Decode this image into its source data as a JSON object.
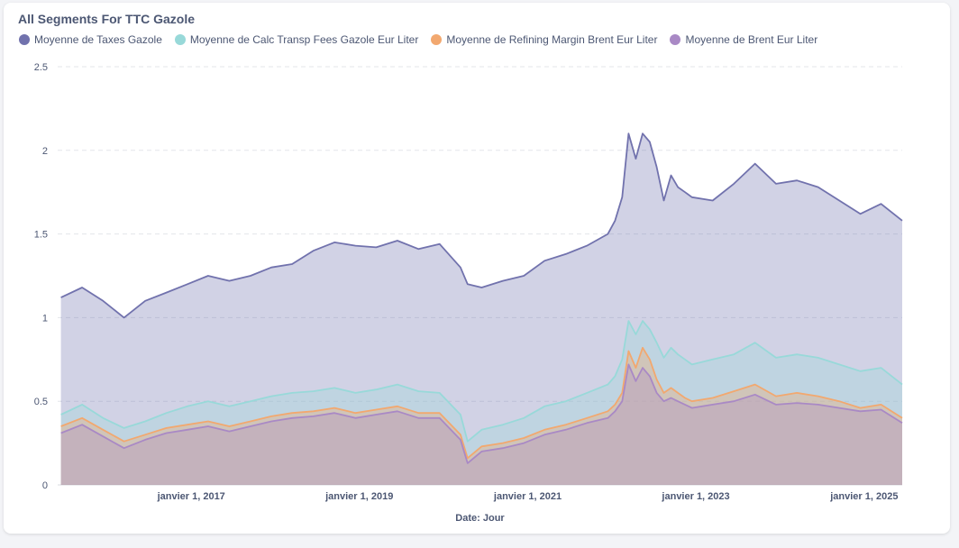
{
  "chart_data": {
    "type": "area",
    "title": "All Segments For TTC Gazole",
    "xlabel": "Date: Jour",
    "ylabel": "",
    "ylim": [
      0,
      2.5
    ],
    "y_ticks": [
      "0",
      "0.5",
      "1",
      "1.5",
      "2",
      "2.5"
    ],
    "x_range": [
      "2015-06-01",
      "2025-06-15"
    ],
    "x_ticks": [
      {
        "label": "janvier 1, 2017",
        "date": "2017-01-01"
      },
      {
        "label": "janvier 1, 2019",
        "date": "2019-01-01"
      },
      {
        "label": "janvier 1, 2021",
        "date": "2021-01-01"
      },
      {
        "label": "janvier 1, 2023",
        "date": "2023-01-01"
      },
      {
        "label": "janvier 1, 2025",
        "date": "2025-01-01"
      }
    ],
    "grid": "horizontal-dashed",
    "legend_position": "top-left",
    "stacked": false,
    "x": [
      "2015-06",
      "2015-09",
      "2015-12",
      "2016-03",
      "2016-06",
      "2016-09",
      "2016-12",
      "2017-03",
      "2017-06",
      "2017-09",
      "2017-12",
      "2018-03",
      "2018-06",
      "2018-09",
      "2018-12",
      "2019-03",
      "2019-06",
      "2019-09",
      "2019-12",
      "2020-03",
      "2020-04",
      "2020-06",
      "2020-09",
      "2020-12",
      "2021-03",
      "2021-06",
      "2021-09",
      "2021-12",
      "2022-01",
      "2022-02",
      "2022-03",
      "2022-04",
      "2022-05",
      "2022-06",
      "2022-07",
      "2022-08",
      "2022-09",
      "2022-10",
      "2022-11",
      "2022-12",
      "2023-03",
      "2023-06",
      "2023-09",
      "2023-12",
      "2024-03",
      "2024-06",
      "2024-09",
      "2024-12",
      "2025-03",
      "2025-06"
    ],
    "series": [
      {
        "name": "Moyenne de Taxes Gazole",
        "color": "#7172ad",
        "values": [
          1.12,
          1.18,
          1.1,
          1.0,
          1.1,
          1.15,
          1.2,
          1.25,
          1.22,
          1.25,
          1.3,
          1.32,
          1.4,
          1.45,
          1.43,
          1.42,
          1.46,
          1.41,
          1.44,
          1.3,
          1.2,
          1.18,
          1.22,
          1.25,
          1.34,
          1.38,
          1.43,
          1.5,
          1.58,
          1.72,
          2.1,
          1.95,
          2.1,
          2.05,
          1.9,
          1.7,
          1.85,
          1.78,
          1.75,
          1.72,
          1.7,
          1.8,
          1.92,
          1.8,
          1.82,
          1.78,
          1.7,
          1.62,
          1.68,
          1.58
        ]
      },
      {
        "name": "Moyenne de Calc Transp Fees Gazole Eur Liter",
        "color": "#98d9d9",
        "values": [
          0.42,
          0.48,
          0.4,
          0.34,
          0.38,
          0.43,
          0.47,
          0.5,
          0.47,
          0.5,
          0.53,
          0.55,
          0.56,
          0.58,
          0.55,
          0.57,
          0.6,
          0.56,
          0.55,
          0.42,
          0.26,
          0.33,
          0.36,
          0.4,
          0.47,
          0.5,
          0.55,
          0.6,
          0.65,
          0.75,
          0.98,
          0.9,
          0.98,
          0.93,
          0.85,
          0.76,
          0.82,
          0.78,
          0.75,
          0.72,
          0.75,
          0.78,
          0.85,
          0.76,
          0.78,
          0.76,
          0.72,
          0.68,
          0.7,
          0.6
        ]
      },
      {
        "name": "Moyenne de Refining Margin Brent Eur Liter",
        "color": "#f2a86f",
        "values": [
          0.35,
          0.4,
          0.33,
          0.26,
          0.3,
          0.34,
          0.36,
          0.38,
          0.35,
          0.38,
          0.41,
          0.43,
          0.44,
          0.46,
          0.43,
          0.45,
          0.47,
          0.43,
          0.43,
          0.3,
          0.16,
          0.23,
          0.25,
          0.28,
          0.33,
          0.36,
          0.4,
          0.44,
          0.48,
          0.55,
          0.8,
          0.7,
          0.82,
          0.75,
          0.63,
          0.55,
          0.58,
          0.55,
          0.52,
          0.5,
          0.52,
          0.56,
          0.6,
          0.53,
          0.55,
          0.53,
          0.5,
          0.46,
          0.48,
          0.4
        ]
      },
      {
        "name": "Moyenne de Brent Eur Liter",
        "color": "#a989c5",
        "values": [
          0.31,
          0.36,
          0.29,
          0.22,
          0.27,
          0.31,
          0.33,
          0.35,
          0.32,
          0.35,
          0.38,
          0.4,
          0.41,
          0.43,
          0.4,
          0.42,
          0.44,
          0.4,
          0.4,
          0.27,
          0.13,
          0.2,
          0.22,
          0.25,
          0.3,
          0.33,
          0.37,
          0.4,
          0.44,
          0.5,
          0.72,
          0.62,
          0.7,
          0.65,
          0.55,
          0.5,
          0.52,
          0.5,
          0.48,
          0.46,
          0.48,
          0.5,
          0.54,
          0.48,
          0.49,
          0.48,
          0.46,
          0.44,
          0.45,
          0.37
        ]
      }
    ]
  }
}
